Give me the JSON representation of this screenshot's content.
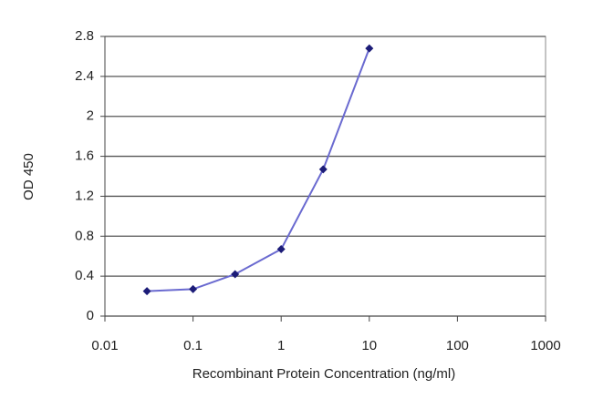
{
  "chart_data": {
    "type": "line",
    "xlabel": "Recombinant Protein Concentration (ng/ml)",
    "ylabel": "OD 450",
    "x": [
      0.03,
      0.1,
      0.3,
      1,
      3,
      10
    ],
    "series": [
      {
        "color": "#6a6ad0",
        "marker_color": "#1c1c78",
        "values": [
          0.25,
          0.27,
          0.42,
          0.67,
          1.47,
          2.68
        ]
      }
    ],
    "xscale": "log",
    "xlim": [
      0.01,
      1000
    ],
    "xticks": [
      0.01,
      0.1,
      1,
      10,
      100,
      1000
    ],
    "ylim": [
      0,
      2.8
    ],
    "yticks": [
      0,
      0.4,
      0.8,
      1.2,
      1.6,
      2,
      2.4,
      2.8
    ],
    "grid": true
  }
}
